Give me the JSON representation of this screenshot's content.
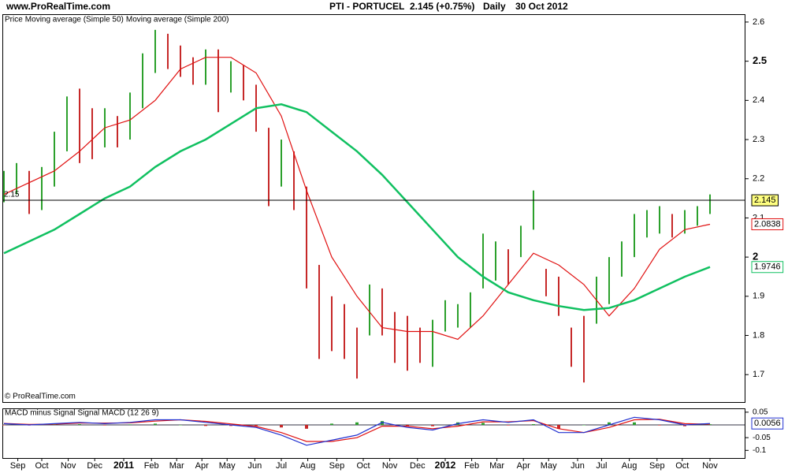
{
  "chart_data": [
    {
      "type": "price",
      "source": "www.ProRealTime.com",
      "title": "PTI - PORTUCEL",
      "subtitle": "2.145 (+0.75%)",
      "period": "Daily",
      "date": "30 Oct 2012",
      "watermark": "© ProRealTime.com",
      "price_name": "Price",
      "up_color": "#2ca02c",
      "down_color": "#c62828",
      "x": [
        0,
        10,
        20,
        30,
        40,
        50,
        60,
        70,
        80,
        90,
        100,
        110,
        120,
        130,
        140,
        150,
        160,
        170,
        180,
        190,
        200,
        210,
        220,
        230,
        240,
        250,
        260,
        270,
        280,
        290,
        300,
        310,
        320,
        330,
        340,
        350,
        360,
        370,
        380,
        390,
        400,
        410,
        420,
        430,
        440,
        450,
        460,
        470,
        480,
        490,
        500,
        510,
        520,
        530,
        540,
        550,
        560
      ],
      "high": [
        2.22,
        2.24,
        2.22,
        2.23,
        2.32,
        2.41,
        2.43,
        2.38,
        2.38,
        2.36,
        2.42,
        2.52,
        2.58,
        2.57,
        2.54,
        2.51,
        2.53,
        2.53,
        2.5,
        2.49,
        2.44,
        2.33,
        2.3,
        2.27,
        2.18,
        1.98,
        1.9,
        1.88,
        1.82,
        1.93,
        1.92,
        1.86,
        1.85,
        1.82,
        1.84,
        1.89,
        1.88,
        1.91,
        2.06,
        2.04,
        2.02,
        2.08,
        2.17,
        1.97,
        1.95,
        1.82,
        1.85,
        1.95,
        2.0,
        2.04,
        2.11,
        2.12,
        2.13,
        2.11,
        2.12,
        2.13,
        2.16
      ],
      "low": [
        2.14,
        2.16,
        2.11,
        2.12,
        2.18,
        2.27,
        2.24,
        2.25,
        2.28,
        2.28,
        2.3,
        2.38,
        2.47,
        2.48,
        2.46,
        2.44,
        2.44,
        2.37,
        2.42,
        2.4,
        2.32,
        2.13,
        2.18,
        2.12,
        1.92,
        1.74,
        1.76,
        1.74,
        1.69,
        1.8,
        1.8,
        1.73,
        1.71,
        1.73,
        1.72,
        1.81,
        1.82,
        1.82,
        1.92,
        1.94,
        1.93,
        2.0,
        2.07,
        1.9,
        1.85,
        1.72,
        1.68,
        1.83,
        1.88,
        1.95,
        2.0,
        2.05,
        2.06,
        2.05,
        2.06,
        2.08,
        2.11
      ],
      "series": [
        {
          "name": "Moving average (Simple 50)",
          "color": "#e01010",
          "x": [
            0,
            20,
            40,
            60,
            80,
            100,
            120,
            140,
            160,
            180,
            200,
            220,
            240,
            260,
            280,
            300,
            320,
            340,
            360,
            380,
            400,
            420,
            440,
            460,
            480,
            500,
            520,
            540,
            560
          ],
          "values": [
            2.16,
            2.19,
            2.22,
            2.27,
            2.33,
            2.35,
            2.4,
            2.48,
            2.51,
            2.51,
            2.47,
            2.36,
            2.17,
            2.0,
            1.9,
            1.82,
            1.81,
            1.81,
            1.79,
            1.85,
            1.93,
            2.01,
            1.98,
            1.93,
            1.85,
            1.92,
            2.02,
            2.07,
            2.0838
          ]
        },
        {
          "name": "Moving average (Simple 200)",
          "color": "#10c060",
          "x": [
            0,
            20,
            40,
            60,
            80,
            100,
            120,
            140,
            160,
            180,
            200,
            220,
            240,
            260,
            280,
            300,
            320,
            340,
            360,
            380,
            400,
            420,
            440,
            460,
            480,
            500,
            520,
            540,
            560
          ],
          "values": [
            2.01,
            2.04,
            2.07,
            2.11,
            2.15,
            2.18,
            2.23,
            2.27,
            2.3,
            2.34,
            2.38,
            2.39,
            2.37,
            2.32,
            2.27,
            2.21,
            2.14,
            2.07,
            2.0,
            1.95,
            1.91,
            1.89,
            1.875,
            1.865,
            1.87,
            1.89,
            1.92,
            1.95,
            1.9746
          ]
        }
      ],
      "reference_line": {
        "value": 2.145,
        "label": "2.15"
      },
      "xlim": [
        0,
        587.5
      ],
      "ylim": [
        1.63,
        2.62
      ],
      "yticks": [
        1.7,
        1.8,
        1.9,
        2,
        2.1,
        2.2,
        2.3,
        2.4,
        2.5,
        2.6
      ]
    },
    {
      "type": "macd",
      "x": [
        0,
        20,
        40,
        60,
        80,
        100,
        120,
        140,
        160,
        180,
        200,
        220,
        240,
        260,
        280,
        300,
        320,
        340,
        360,
        380,
        400,
        420,
        440,
        460,
        480,
        500,
        520,
        540,
        560
      ],
      "series": [
        {
          "name": "MACD minus Signal",
          "color": "#2ca02c",
          "negative_color": "#c62828",
          "kind": "histogram",
          "values": [
            -0.001,
            -0.002,
            0.002,
            0.003,
            -0.002,
            0.002,
            0.005,
            0,
            -0.004,
            -0.004,
            -0.004,
            -0.01,
            -0.015,
            0.005,
            0.01,
            0.015,
            -0.005,
            -0.005,
            0.01,
            0.008,
            -0.002,
            0.003,
            -0.015,
            0,
            0.01,
            0.01,
            -0.002,
            -0.005,
            0.0026
          ]
        },
        {
          "name": "Signal",
          "color": "#e01010",
          "kind": "line",
          "values": [
            0.006,
            0.002,
            0.003,
            0.007,
            0.007,
            0.008,
            0.015,
            0.02,
            0.014,
            0.004,
            -0.006,
            -0.03,
            -0.065,
            -0.065,
            -0.05,
            -0.005,
            -0.005,
            -0.015,
            -0.005,
            0.012,
            0.012,
            0.017,
            -0.015,
            -0.03,
            -0.01,
            0.02,
            0.022,
            0.005,
            0.003
          ]
        },
        {
          "name": "MACD (12 26 9)",
          "color": "#2030d0",
          "kind": "line",
          "values": [
            0.005,
            0,
            0.005,
            0.01,
            0.005,
            0.01,
            0.02,
            0.02,
            0.01,
            0,
            -0.01,
            -0.04,
            -0.08,
            -0.06,
            -0.04,
            0.01,
            -0.01,
            -0.02,
            0.005,
            0.02,
            0.01,
            0.02,
            -0.03,
            -0.03,
            0,
            0.03,
            0.02,
            0,
            0.0056
          ]
        }
      ],
      "xlim": [
        0,
        587.5
      ],
      "ylim": [
        -0.13,
        0.065
      ],
      "yticks": [
        0.05,
        -0.05,
        -0.1
      ],
      "xticks": [
        {
          "value": 11,
          "label": "Sep"
        },
        {
          "value": 30,
          "label": "Oct"
        },
        {
          "value": 51,
          "label": "Nov"
        },
        {
          "value": 72,
          "label": "Dec"
        },
        {
          "value": 95,
          "label": "2011"
        },
        {
          "value": 117,
          "label": "Feb"
        },
        {
          "value": 137,
          "label": "Mar"
        },
        {
          "value": 157,
          "label": "Apr"
        },
        {
          "value": 177,
          "label": "May"
        },
        {
          "value": 199,
          "label": "Jun"
        },
        {
          "value": 220,
          "label": "Jul"
        },
        {
          "value": 241,
          "label": "Aug"
        },
        {
          "value": 264,
          "label": "Sep"
        },
        {
          "value": 285,
          "label": "Oct"
        },
        {
          "value": 306,
          "label": "Nov"
        },
        {
          "value": 328,
          "label": "Dec"
        },
        {
          "value": 350,
          "label": "2012"
        },
        {
          "value": 371,
          "label": "Feb"
        },
        {
          "value": 391,
          "label": "Mar"
        },
        {
          "value": 412,
          "label": "Apr"
        },
        {
          "value": 432,
          "label": "May"
        },
        {
          "value": 455,
          "label": "Jun"
        },
        {
          "value": 474,
          "label": "Jul"
        },
        {
          "value": 496,
          "label": "Aug"
        },
        {
          "value": 518,
          "label": "Sep"
        },
        {
          "value": 538,
          "label": "Oct"
        },
        {
          "value": 560,
          "label": "Nov"
        }
      ]
    }
  ]
}
